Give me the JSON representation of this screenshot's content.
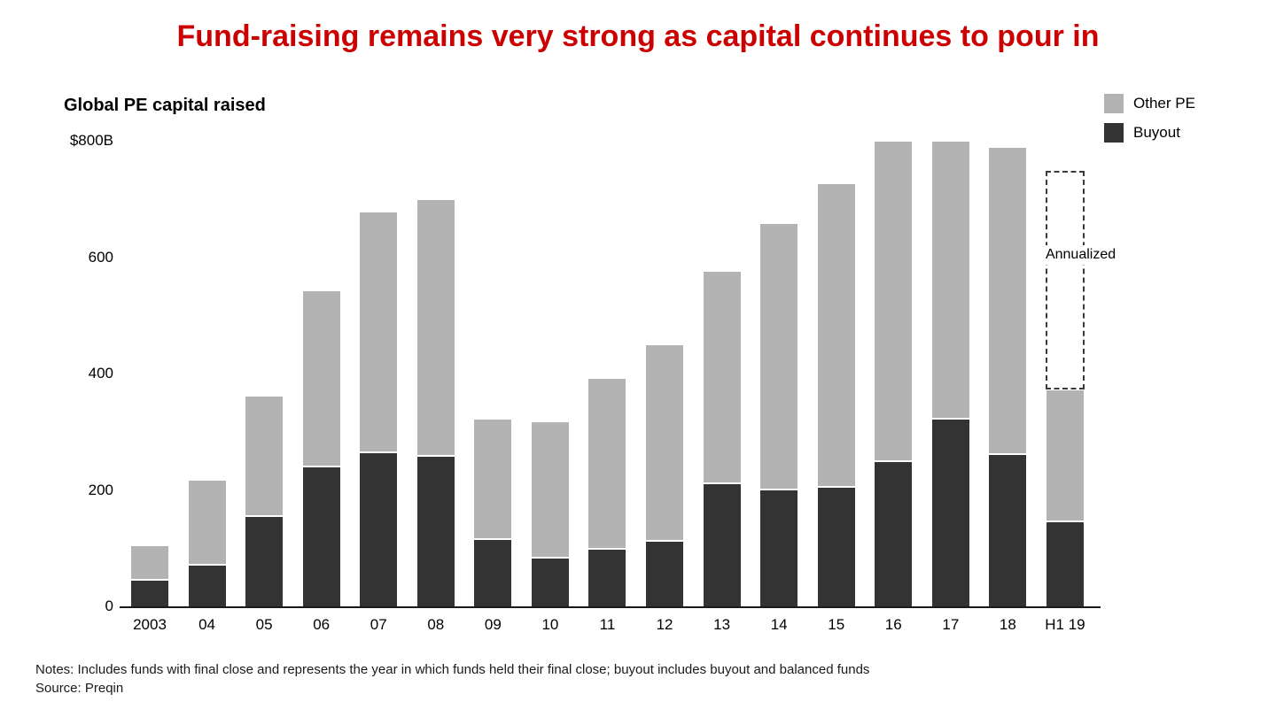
{
  "title": {
    "text": "Fund-raising remains very strong as capital continues to pour in",
    "color": "#cc0000"
  },
  "chart": {
    "heading": "Global PE capital raised"
  },
  "chart_data": {
    "type": "bar",
    "stacked": true,
    "title": "Global PE capital raised",
    "categories": [
      "2003",
      "04",
      "05",
      "06",
      "07",
      "08",
      "09",
      "10",
      "11",
      "12",
      "13",
      "14",
      "15",
      "16",
      "17",
      "18",
      "H1 19"
    ],
    "series": [
      {
        "name": "Buyout",
        "color": "#333333",
        "values": [
          45,
          72,
          155,
          240,
          264,
          259,
          116,
          83,
          99,
          113,
          211,
          201,
          206,
          249,
          322,
          261,
          146
        ]
      },
      {
        "name": "Other PE",
        "color": "#b3b3b3",
        "values": [
          60,
          146,
          207,
          303,
          414,
          441,
          206,
          235,
          294,
          337,
          366,
          457,
          521,
          551,
          478,
          529,
          226
        ]
      }
    ],
    "totals": [
      105,
      218,
      362,
      543,
      678,
      700,
      322,
      318,
      393,
      450,
      577,
      658,
      727,
      800,
      800,
      790,
      372
    ],
    "ylim": [
      0,
      800
    ],
    "yticks": [
      0,
      200,
      400,
      600,
      800
    ],
    "ytick_labels": [
      "0",
      "200",
      "400",
      "600",
      "$800B"
    ],
    "grid": false,
    "legend_position": "top-right",
    "legend": [
      {
        "label": "Other PE",
        "color": "#b3b3b3"
      },
      {
        "label": "Buyout",
        "color": "#333333"
      }
    ],
    "annotations": {
      "annualized": {
        "label": "Annualized",
        "category": "H1 19",
        "from": 374,
        "to": 750
      }
    }
  },
  "notes": {
    "line1": "Notes: Includes funds with final close and represents the year in which funds held their final close; buyout includes buyout and balanced funds",
    "line2": "Source: Preqin"
  }
}
